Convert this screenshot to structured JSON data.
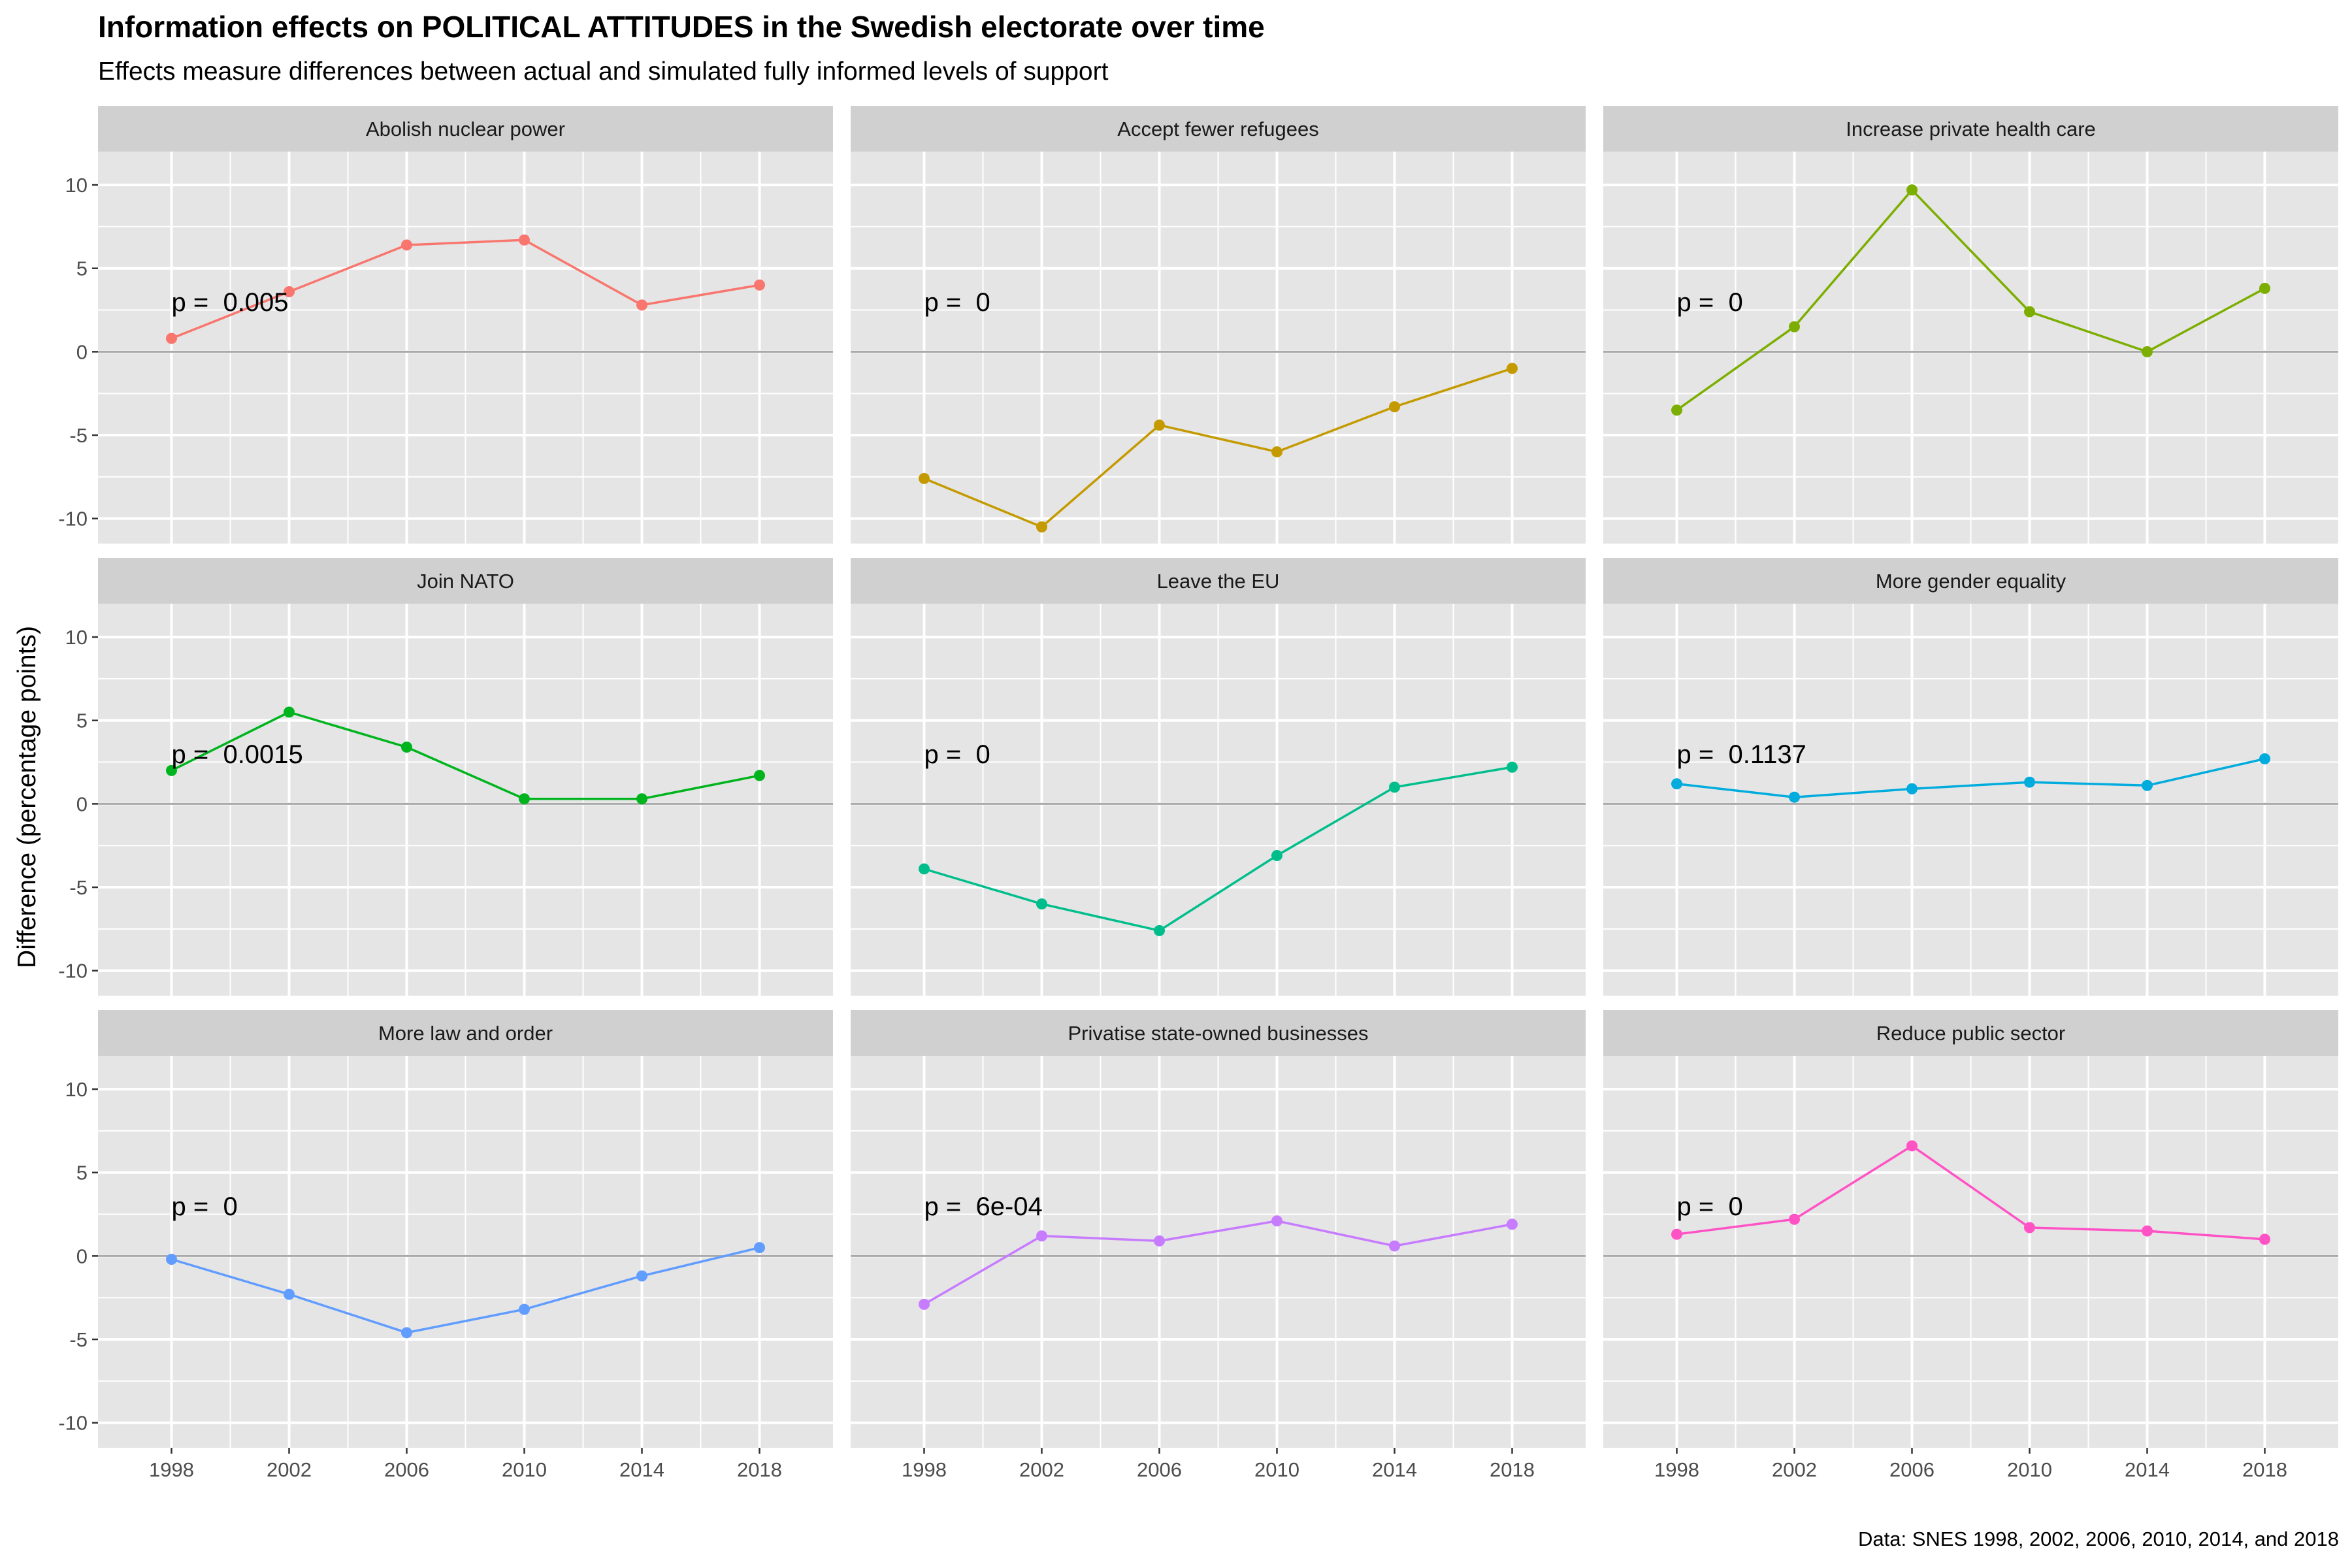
{
  "title": "Information effects on POLITICAL ATTITUDES in the Swedish electorate over time",
  "subtitle": "Effects measure differences between actual and simulated fully informed levels of support",
  "caption": "Data: SNES 1998, 2002, 2006, 2010, 2014, and 2018",
  "colors": {
    "panel_background": "#e5e5e5",
    "strip_background": "#d0d0d0",
    "grid": "#ffffff",
    "zero_line": "#aaaaaa",
    "axis_text": "#4d4d4d"
  },
  "chart_data": {
    "type": "line",
    "layout": "facet_wrap 3x3",
    "ylabel": "Difference (percentage points)",
    "xlabel": "",
    "x": [
      1998,
      2002,
      2006,
      2010,
      2014,
      2018
    ],
    "x_ticks": [
      "1998",
      "2002",
      "2006",
      "2010",
      "2014",
      "2018"
    ],
    "xlim": [
      1995.5,
      2020.5
    ],
    "ylim": [
      -11.5,
      12
    ],
    "y_ticks": [
      -10,
      -5,
      0,
      5,
      10
    ],
    "y_tick_labels": [
      "-10",
      "-5",
      "0",
      "5",
      "10"
    ],
    "reference_line": 0,
    "facets": [
      {
        "label": "Abolish nuclear power",
        "color": "#F8766D",
        "values": [
          0.8,
          3.6,
          6.4,
          6.7,
          2.8,
          4.0
        ],
        "annotation": "p =  0.005"
      },
      {
        "label": "Accept fewer refugees",
        "color": "#C49A00",
        "values": [
          -7.6,
          -10.5,
          -4.4,
          -6.0,
          -3.3,
          -1.0
        ],
        "annotation": "p =  0"
      },
      {
        "label": "Increase private health care",
        "color": "#7CAE00",
        "values": [
          -3.5,
          1.5,
          9.7,
          2.4,
          0.0,
          3.8
        ],
        "annotation": "p =  0"
      },
      {
        "label": "Join NATO",
        "color": "#00B41E",
        "values": [
          2.0,
          5.5,
          3.4,
          0.3,
          0.3,
          1.7
        ],
        "annotation": "p =  0.0015"
      },
      {
        "label": "Leave the EU",
        "color": "#00BE8C",
        "values": [
          -3.9,
          -6.0,
          -7.6,
          -3.1,
          1.0,
          2.2
        ],
        "annotation": "p =  0"
      },
      {
        "label": "More gender equality",
        "color": "#00ACDD",
        "values": [
          1.2,
          0.4,
          0.9,
          1.3,
          1.1,
          2.7
        ],
        "annotation": "p =  0.1137"
      },
      {
        "label": "More law and order",
        "color": "#619CFF",
        "values": [
          -0.2,
          -2.3,
          -4.6,
          -3.2,
          -1.2,
          0.5
        ],
        "annotation": "p =  0"
      },
      {
        "label": "Privatise state-owned businesses",
        "color": "#C77CFF",
        "values": [
          -2.9,
          1.2,
          0.9,
          2.1,
          0.6,
          1.9
        ],
        "annotation": "p =  6e-04"
      },
      {
        "label": "Reduce public sector",
        "color": "#FF52C5",
        "values": [
          1.3,
          2.2,
          6.6,
          1.7,
          1.5,
          1.0
        ],
        "annotation": "p =  0"
      }
    ]
  }
}
